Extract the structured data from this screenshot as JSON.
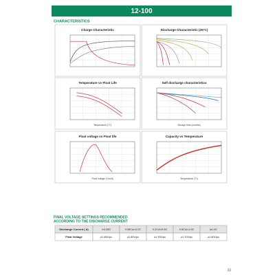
{
  "header": {
    "title": "12-100"
  },
  "section_title": "CHARACTERISTICS",
  "panels": [
    {
      "title": "Charge Characteristic"
    },
    {
      "title": "Discharge Characteristic (25°C)"
    },
    {
      "title": "Temperature vs Float Life",
      "x_label": "Temperature (°C)"
    },
    {
      "title": "Self discharge characteristics",
      "x_label": "Storage time (months)"
    },
    {
      "title": "Float voltage vs Float life",
      "x_label": "Float Voltage (V/cell)"
    },
    {
      "title": "Capacity vs Temperature",
      "x_label": "Temperature (°C)"
    }
  ],
  "table": {
    "title_lines": [
      "FINAL VOLTAGE SETTINGS RECOMMENDED",
      "ACCORDING TO THE DISCHARGE CURRENT"
    ],
    "rows": [
      [
        "Discharge Current ( A)",
        "I<0.08C",
        "0.08C≤I<0.2C",
        "0.2C≤I<0.5C",
        "0.5C≤I<1.0C",
        "I≥1.0C"
      ],
      [
        "Final Voltage",
        "≥1.85V/pc",
        "≥1.80V/pc",
        "≥1.75V/pc",
        "≥1.70V/pc",
        "≥1.60V/pc"
      ]
    ]
  },
  "footer": {
    "page": "33"
  }
}
